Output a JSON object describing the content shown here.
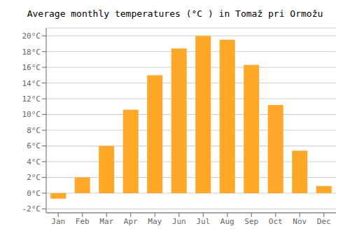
{
  "chart_data": {
    "type": "bar",
    "title": "Average monthly temperatures (°C ) in Tomaž pri Ormožu",
    "categories": [
      "Jan",
      "Feb",
      "Mar",
      "Apr",
      "May",
      "Jun",
      "Jul",
      "Aug",
      "Sep",
      "Oct",
      "Nov",
      "Dec"
    ],
    "values": [
      -0.7,
      2.0,
      6.0,
      10.6,
      15.0,
      18.4,
      20.0,
      19.5,
      16.3,
      11.2,
      5.4,
      0.9
    ],
    "color": "#FFA726",
    "ylim": [
      -2.5,
      21.0
    ],
    "yticks": [
      {
        "value": -2,
        "label": "-2°C"
      },
      {
        "value": 0,
        "label": "0°C"
      },
      {
        "value": 2,
        "label": "2°C"
      },
      {
        "value": 4,
        "label": "4°C"
      },
      {
        "value": 6,
        "label": "6°C"
      },
      {
        "value": 8,
        "label": "8°C"
      },
      {
        "value": 10,
        "label": "10°C"
      },
      {
        "value": 12,
        "label": "12°C"
      },
      {
        "value": 14,
        "label": "14°C"
      },
      {
        "value": 16,
        "label": "16°C"
      },
      {
        "value": 18,
        "label": "18°C"
      },
      {
        "value": 20,
        "label": "20°C"
      }
    ],
    "grid": true
  }
}
